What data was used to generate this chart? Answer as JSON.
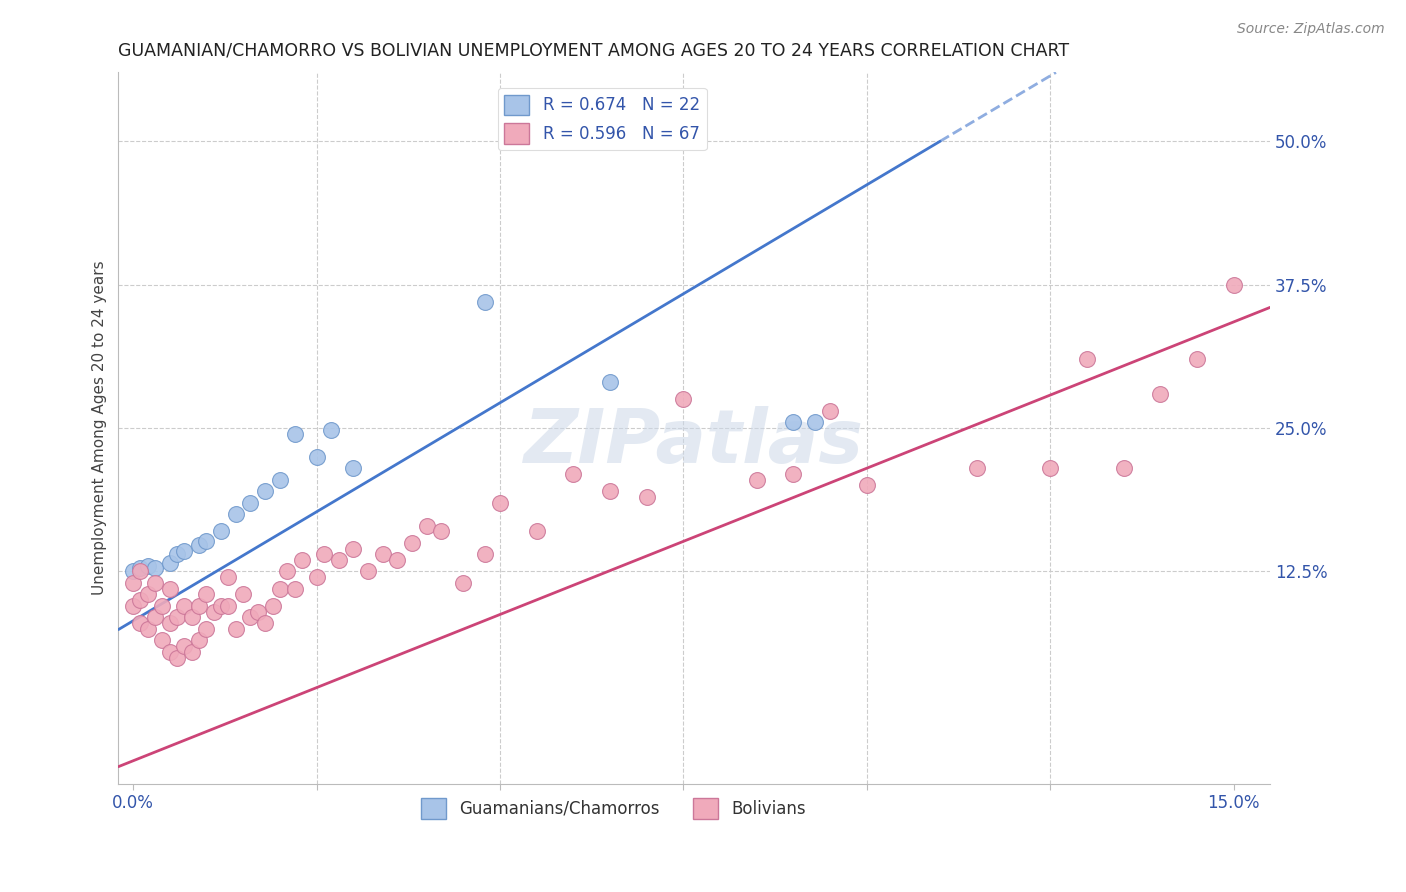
{
  "title": "GUAMANIAN/CHAMORRO VS BOLIVIAN UNEMPLOYMENT AMONG AGES 20 TO 24 YEARS CORRELATION CHART",
  "source": "Source: ZipAtlas.com",
  "ylabel": "Unemployment Among Ages 20 to 24 years",
  "xlim": [
    -0.002,
    0.155
  ],
  "ylim": [
    -0.06,
    0.56
  ],
  "xticks": [
    0.0,
    0.025,
    0.05,
    0.075,
    0.1,
    0.125,
    0.15
  ],
  "xticklabels": [
    "0.0%",
    "",
    "",
    "",
    "",
    "",
    "15.0%"
  ],
  "yticks_right": [
    0.125,
    0.25,
    0.375,
    0.5
  ],
  "yticklabels_right": [
    "12.5%",
    "25.0%",
    "37.5%",
    "50.0%"
  ],
  "guamanian_R": 0.674,
  "guamanian_N": 22,
  "bolivian_R": 0.596,
  "bolivian_N": 67,
  "guamanian_color": "#a8c4e8",
  "guamanian_edge_color": "#7099cc",
  "bolivian_color": "#f0aabb",
  "bolivian_edge_color": "#cc7799",
  "trend_guamanian_color": "#4477cc",
  "trend_bolivian_color": "#cc4477",
  "background_color": "#ffffff",
  "watermark_color": "#ccd8e8",
  "gua_slope": 3.8,
  "gua_intercept": 0.082,
  "bol_slope": 2.55,
  "bol_intercept": -0.04,
  "gua_x": [
    0.0,
    0.001,
    0.002,
    0.003,
    0.005,
    0.006,
    0.007,
    0.009,
    0.01,
    0.012,
    0.014,
    0.016,
    0.018,
    0.02,
    0.022,
    0.025,
    0.027,
    0.03,
    0.048,
    0.065,
    0.09,
    0.093
  ],
  "gua_y": [
    0.125,
    0.128,
    0.13,
    0.128,
    0.132,
    0.14,
    0.143,
    0.148,
    0.152,
    0.16,
    0.175,
    0.185,
    0.195,
    0.205,
    0.245,
    0.225,
    0.248,
    0.215,
    0.36,
    0.29,
    0.255,
    0.255
  ],
  "bol_x": [
    0.0,
    0.0,
    0.001,
    0.001,
    0.001,
    0.002,
    0.002,
    0.003,
    0.003,
    0.004,
    0.004,
    0.005,
    0.005,
    0.005,
    0.006,
    0.006,
    0.007,
    0.007,
    0.008,
    0.008,
    0.009,
    0.009,
    0.01,
    0.01,
    0.011,
    0.012,
    0.013,
    0.013,
    0.014,
    0.015,
    0.016,
    0.017,
    0.018,
    0.019,
    0.02,
    0.021,
    0.022,
    0.023,
    0.025,
    0.026,
    0.028,
    0.03,
    0.032,
    0.034,
    0.036,
    0.038,
    0.04,
    0.042,
    0.045,
    0.048,
    0.05,
    0.055,
    0.06,
    0.065,
    0.07,
    0.075,
    0.085,
    0.09,
    0.095,
    0.1,
    0.115,
    0.125,
    0.13,
    0.135,
    0.14,
    0.145,
    0.15
  ],
  "bol_y": [
    0.095,
    0.115,
    0.08,
    0.1,
    0.125,
    0.075,
    0.105,
    0.085,
    0.115,
    0.065,
    0.095,
    0.055,
    0.08,
    0.11,
    0.05,
    0.085,
    0.06,
    0.095,
    0.055,
    0.085,
    0.065,
    0.095,
    0.075,
    0.105,
    0.09,
    0.095,
    0.095,
    0.12,
    0.075,
    0.105,
    0.085,
    0.09,
    0.08,
    0.095,
    0.11,
    0.125,
    0.11,
    0.135,
    0.12,
    0.14,
    0.135,
    0.145,
    0.125,
    0.14,
    0.135,
    0.15,
    0.165,
    0.16,
    0.115,
    0.14,
    0.185,
    0.16,
    0.21,
    0.195,
    0.19,
    0.275,
    0.205,
    0.21,
    0.265,
    0.2,
    0.215,
    0.215,
    0.31,
    0.215,
    0.28,
    0.31,
    0.375
  ]
}
